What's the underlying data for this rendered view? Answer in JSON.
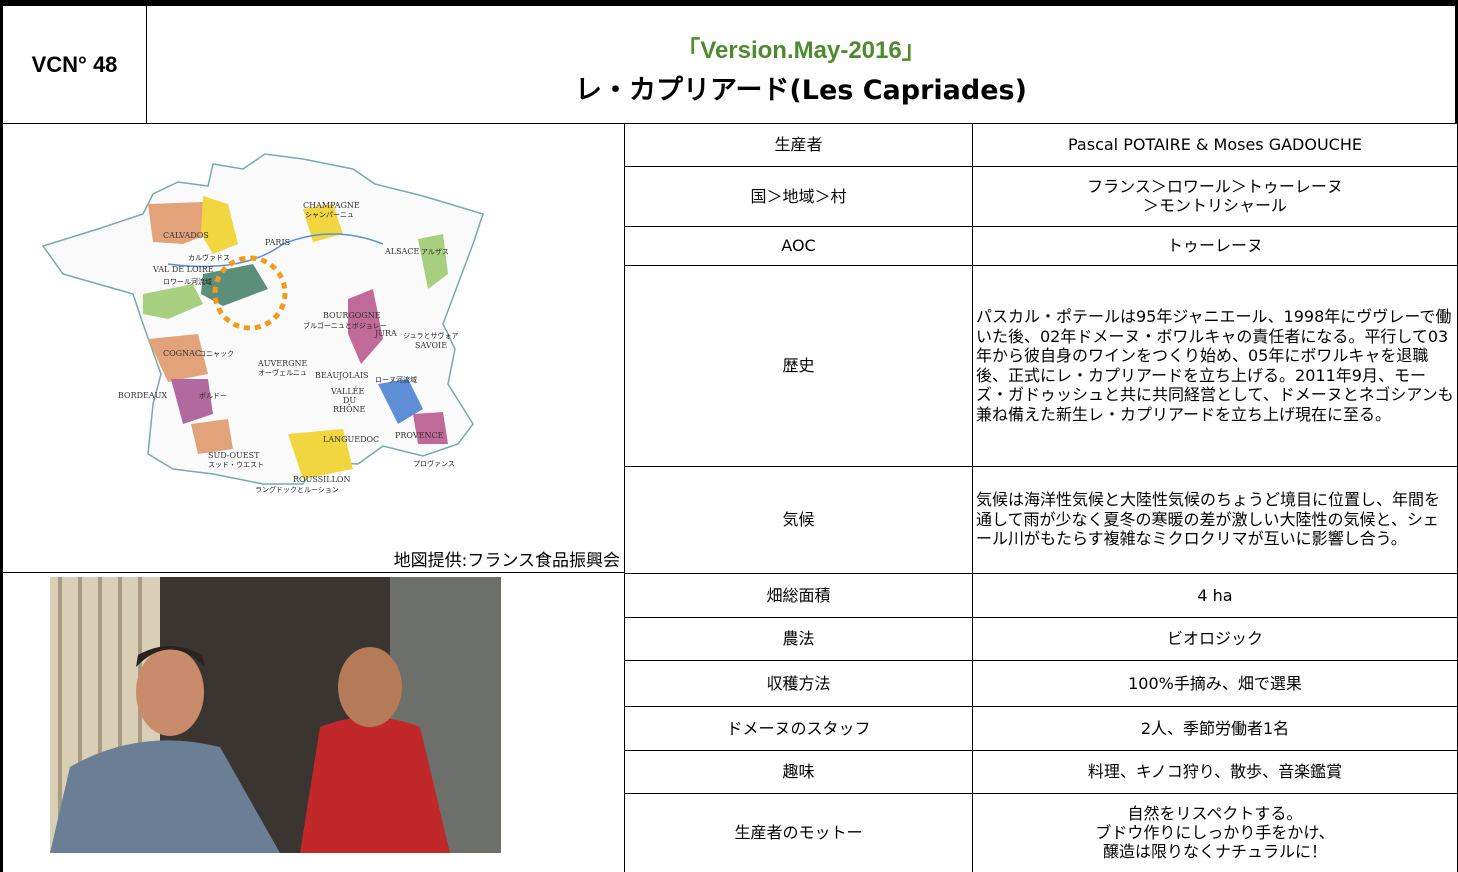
{
  "header": {
    "id": "VCN° 48",
    "version": "「Version.May-2016」",
    "title": "レ・カプリアード(Les Capriades)"
  },
  "map": {
    "caption": "地図提供:フランス食品振興会",
    "labels": [
      "CHAMPAGNE",
      "シャンパーニュ",
      "CALVADOS",
      "カルヴァドス",
      "PARIS",
      "VAL DE LOIRE",
      "ロワール河流域",
      "ALSACE",
      "アルザス",
      "BOURGOGNE",
      "ブルゴーニュとボジョレー",
      "JURA",
      "ジュラとサヴォア",
      "SAVOIE",
      "COGNAC",
      "コニャック",
      "AUVERGNE",
      "オーヴェルニュ",
      "BEAUJOLAIS",
      "VALLÉE",
      "DU",
      "RHÔNE",
      "ローヌ河流域",
      "BORDEAUX",
      "ボルドー",
      "LANGUEDOC",
      "PROVENCE",
      "プロヴァンス",
      "SUD-OUEST",
      "スッド・ウエスト",
      "ROUSSILLON",
      "ラングドックとルーション"
    ]
  },
  "table": {
    "rows": [
      [
        "生産者",
        "Pascal POTAIRE & Moses GADOUCHE"
      ],
      [
        "国＞地域＞村",
        [
          "フランス＞ロワール＞トゥーレーヌ",
          "＞モントリシャール"
        ]
      ],
      [
        "AOC",
        "トゥーレーヌ"
      ],
      [
        "歴史",
        "パスカル・ポテールは95年ジャニエール、1998年にヴヴレーで働いた後、02年ドメーヌ・ボワルキャの責任者になる。平行して03年から彼自身のワインをつくり始め、05年にボワルキャを退職後、正式にレ・カプリアードを立ち上げる。2011年9月、モーズ・ガドゥッシュと共に共同経営として、ドメーヌとネゴシアンも兼ね備えた新生レ・カプリアードを立ち上げ現在に至る。"
      ],
      [
        "気候",
        "気候は海洋性気候と大陸性気候のちょうど境目に位置し、年間を通して雨が少なく夏冬の寒暖の差が激しい大陸性の気候と、シェール川がもたらす複雑なミクロクリマが互いに影響し合う。"
      ],
      [
        "畑総面積",
        "4 ha"
      ],
      [
        "農法",
        "ビオロジック"
      ],
      [
        "収穫方法",
        "100%手摘み、畑で選果"
      ],
      [
        "ドメーヌのスタッフ",
        "2人、季節労働者1名"
      ],
      [
        "趣味",
        "料理、キノコ狩り、散歩、音楽鑑賞"
      ],
      [
        "生産者のモットー",
        [
          "自然をリスペクトする。",
          "ブドウ作りにしっかり手をかけ、",
          "醸造は限りなくナチュラルに！"
        ]
      ]
    ]
  }
}
